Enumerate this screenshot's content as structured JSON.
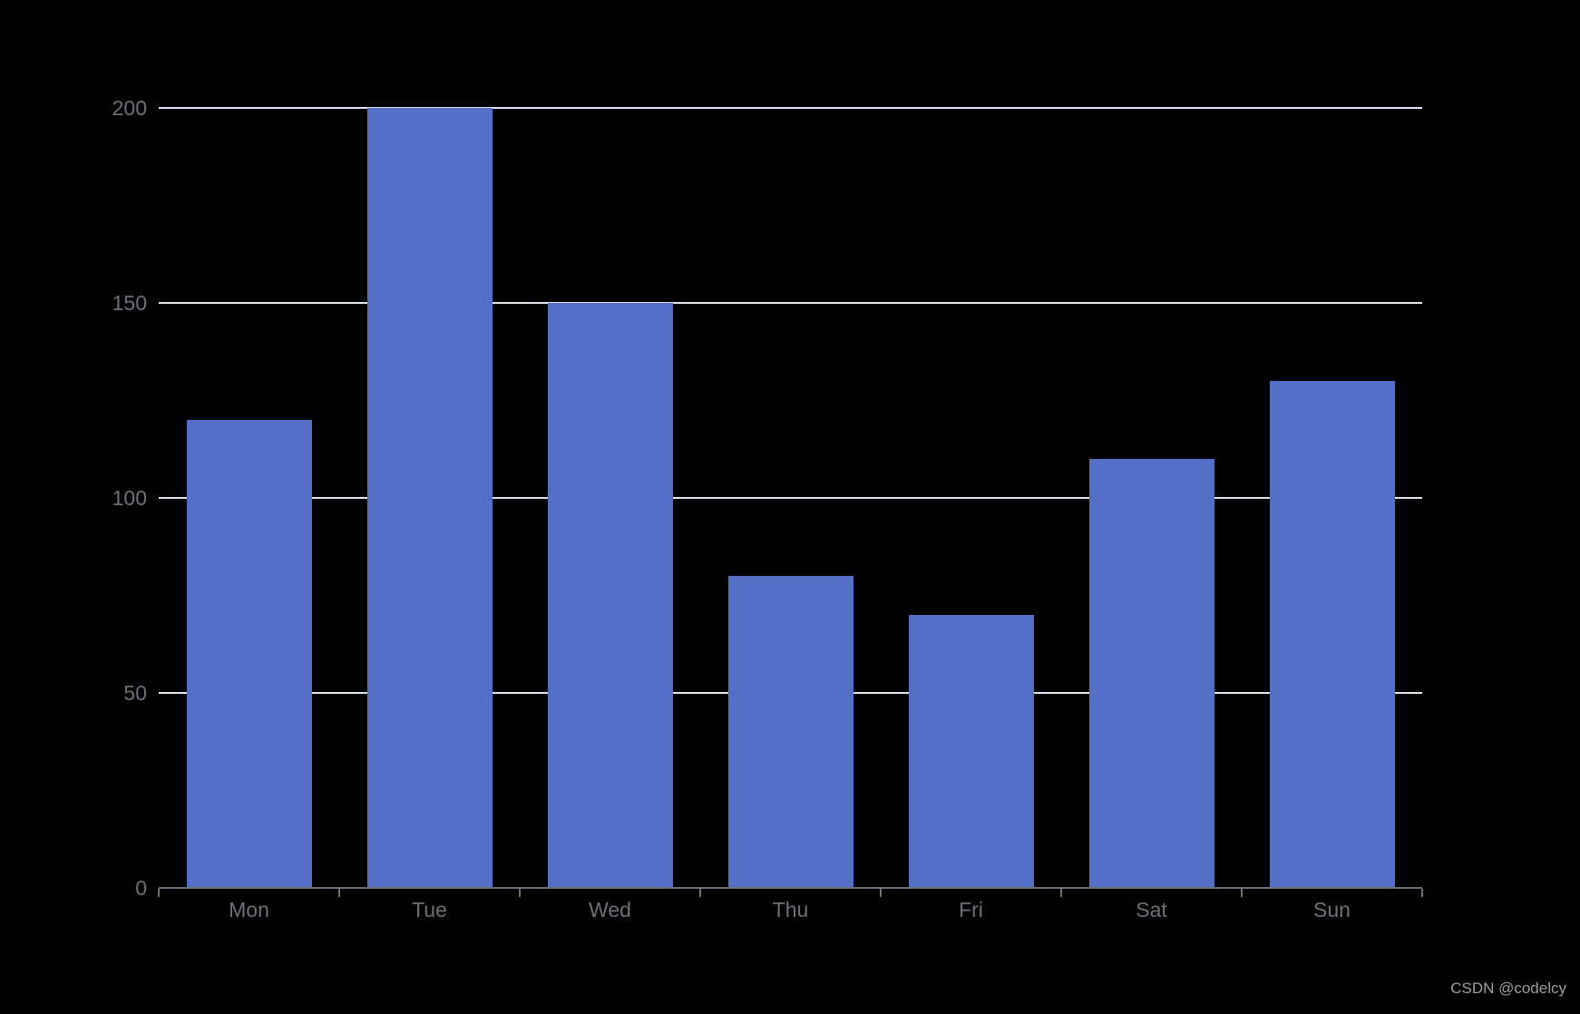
{
  "chart_data": {
    "type": "bar",
    "categories": [
      "Mon",
      "Tue",
      "Wed",
      "Thu",
      "Fri",
      "Sat",
      "Sun"
    ],
    "values": [
      120,
      200,
      150,
      80,
      70,
      110,
      130
    ],
    "title": "",
    "xlabel": "",
    "ylabel": "",
    "ylim": [
      0,
      200
    ],
    "yticks": [
      0,
      50,
      100,
      150,
      200
    ],
    "grid": true,
    "legend": false,
    "colors": {
      "bar": "#5470C6",
      "gridline": "#E0E6F1",
      "axis": "#6E7079",
      "axis_label": "#6E7079",
      "background": "#000000",
      "watermark": "#9E9E9E"
    }
  },
  "watermark": {
    "text": "CSDN @codelcy"
  }
}
